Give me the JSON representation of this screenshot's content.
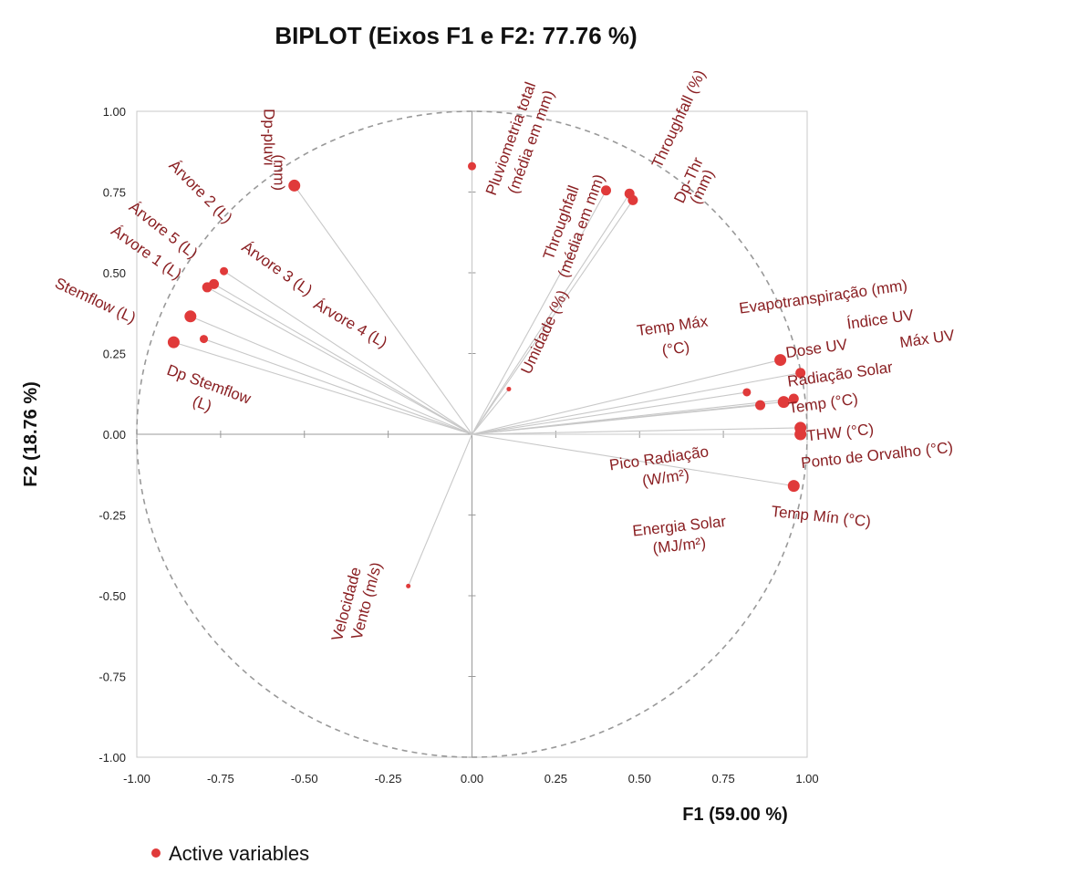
{
  "chart_data": {
    "type": "scatter",
    "title": "BIPLOT (Eixos F1 e F2: 77.76 %)",
    "xlabel": "F1 (59.00 %)",
    "ylabel": "F2 (18.76 %)",
    "xlim": [
      -1.0,
      1.0
    ],
    "ylim": [
      -1.0,
      1.0
    ],
    "x_ticks": [
      "-1.00",
      "-0.75",
      "-0.50",
      "-0.25",
      "0.00",
      "0.25",
      "0.50",
      "0.75",
      "1.00"
    ],
    "y_ticks": [
      "1.00",
      "0.75",
      "0.50",
      "0.25",
      "0.00",
      "-0.25",
      "-0.50",
      "-0.75",
      "-1.00"
    ],
    "legend": {
      "label": "Active variables",
      "position": "bottom-left"
    },
    "colors": {
      "point": "#e03a3a",
      "label": "#8a1f22",
      "vector": "#c8c8c8",
      "circle": "#999999",
      "frame": "#c8c8c8"
    },
    "grid": false,
    "correlation_circle": true,
    "points": [
      {
        "x": -0.53,
        "y": 0.77,
        "r": "large"
      },
      {
        "x": -0.74,
        "y": 0.505,
        "r": "small"
      },
      {
        "x": -0.77,
        "y": 0.465,
        "r": "medium"
      },
      {
        "x": -0.79,
        "y": 0.455,
        "r": "medium"
      },
      {
        "x": -0.84,
        "y": 0.365,
        "r": "large"
      },
      {
        "x": -0.8,
        "y": 0.295,
        "r": "small"
      },
      {
        "x": -0.89,
        "y": 0.285,
        "r": "large"
      },
      {
        "x": 0.0,
        "y": 0.83,
        "r": "small"
      },
      {
        "x": 0.4,
        "y": 0.755,
        "r": "medium"
      },
      {
        "x": 0.47,
        "y": 0.745,
        "r": "medium"
      },
      {
        "x": 0.48,
        "y": 0.725,
        "r": "medium"
      },
      {
        "x": 0.11,
        "y": 0.14,
        "r": "tiny"
      },
      {
        "x": 0.92,
        "y": 0.23,
        "r": "large"
      },
      {
        "x": 0.98,
        "y": 0.19,
        "r": "medium"
      },
      {
        "x": 0.82,
        "y": 0.13,
        "r": "small"
      },
      {
        "x": 0.86,
        "y": 0.09,
        "r": "medium"
      },
      {
        "x": 0.93,
        "y": 0.1,
        "r": "large"
      },
      {
        "x": 0.96,
        "y": 0.11,
        "r": "medium"
      },
      {
        "x": 0.98,
        "y": 0.02,
        "r": "large"
      },
      {
        "x": 0.98,
        "y": 0.0,
        "r": "large"
      },
      {
        "x": 0.96,
        "y": -0.16,
        "r": "large"
      },
      {
        "x": -0.19,
        "y": -0.47,
        "r": "tiny"
      }
    ],
    "labels": [
      {
        "text": "Dp-pluvi",
        "x": -0.62,
        "y": 0.92,
        "rot": 90
      },
      {
        "text": "(mm)",
        "x": -0.59,
        "y": 0.81,
        "rot": 90
      },
      {
        "text": "Árvore 2 (L)",
        "x": -0.82,
        "y": 0.74,
        "rot": 45
      },
      {
        "text": "Árvore 5 (L)",
        "x": -0.93,
        "y": 0.62,
        "rot": 38
      },
      {
        "text": "Árvore 1 (L)",
        "x": -0.98,
        "y": 0.55,
        "rot": 35
      },
      {
        "text": "Stemflow (L)",
        "x": -1.13,
        "y": 0.4,
        "rot": 25
      },
      {
        "text": "Árvore 3 (L)",
        "x": -0.59,
        "y": 0.5,
        "rot": 35
      },
      {
        "text": "Árvore 4 (L)",
        "x": -0.37,
        "y": 0.33,
        "rot": 30
      },
      {
        "text": "Dp Stemflow",
        "x": -0.79,
        "y": 0.14,
        "rot": 20
      },
      {
        "text": "(L)",
        "x": -0.81,
        "y": 0.08,
        "rot": 20
      },
      {
        "text": "Pluviometria total",
        "x": 0.13,
        "y": 0.91,
        "rot": -70
      },
      {
        "text": "(média em mm)",
        "x": 0.19,
        "y": 0.9,
        "rot": -70
      },
      {
        "text": "Throughfall",
        "x": 0.28,
        "y": 0.65,
        "rot": -70
      },
      {
        "text": "(média em mm)",
        "x": 0.34,
        "y": 0.64,
        "rot": -70
      },
      {
        "text": "Umidade (%)",
        "x": 0.23,
        "y": 0.31,
        "rot": -65
      },
      {
        "text": "Throughfall (%)",
        "x": 0.63,
        "y": 0.97,
        "rot": -65
      },
      {
        "text": "Dp-Thr",
        "x": 0.66,
        "y": 0.78,
        "rot": -65
      },
      {
        "text": "(mm)",
        "x": 0.7,
        "y": 0.76,
        "rot": -65
      },
      {
        "text": "Temp Máx",
        "x": 0.6,
        "y": 0.32,
        "rot": -8
      },
      {
        "text": "(°C)",
        "x": 0.61,
        "y": 0.25,
        "rot": -8
      },
      {
        "text": "Evapotranspiração (mm)",
        "x": 1.05,
        "y": 0.41,
        "rot": -8
      },
      {
        "text": "Índice UV",
        "x": 1.22,
        "y": 0.34,
        "rot": -8
      },
      {
        "text": "Máx UV",
        "x": 1.36,
        "y": 0.28,
        "rot": -8
      },
      {
        "text": "Dose UV",
        "x": 1.03,
        "y": 0.25,
        "rot": -8
      },
      {
        "text": "Radiação Solar",
        "x": 1.1,
        "y": 0.17,
        "rot": -8
      },
      {
        "text": "Temp (°C)",
        "x": 1.05,
        "y": 0.08,
        "rot": -8
      },
      {
        "text": "THW (°C)",
        "x": 1.1,
        "y": -0.01,
        "rot": -6
      },
      {
        "text": "Ponto de Orvalho (°C)",
        "x": 1.21,
        "y": -0.08,
        "rot": -6
      },
      {
        "text": "Pico Radiação",
        "x": 0.56,
        "y": -0.09,
        "rot": -8
      },
      {
        "text": "(W/m²)",
        "x": 0.58,
        "y": -0.15,
        "rot": -8
      },
      {
        "text": "Temp Mín (°C)",
        "x": 1.04,
        "y": -0.27,
        "rot": 6
      },
      {
        "text": "Energia Solar",
        "x": 0.62,
        "y": -0.3,
        "rot": -6
      },
      {
        "text": "(MJ/m²)",
        "x": 0.62,
        "y": -0.36,
        "rot": -6
      },
      {
        "text": "Velocidade",
        "x": -0.36,
        "y": -0.53,
        "rot": -75
      },
      {
        "text": "Vento (m/s)",
        "x": -0.3,
        "y": -0.52,
        "rot": -75
      }
    ]
  }
}
